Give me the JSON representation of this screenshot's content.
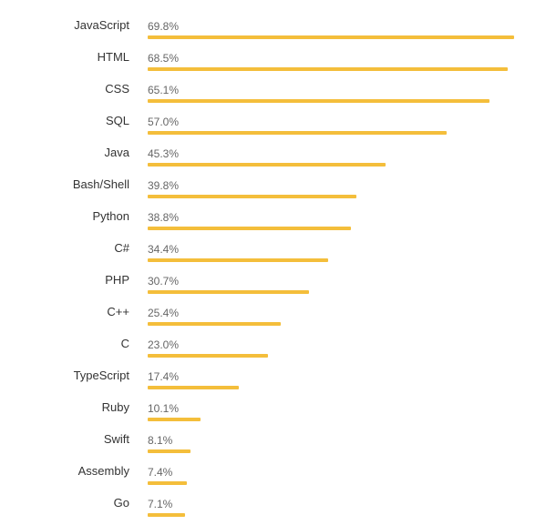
{
  "chart_data": {
    "type": "bar",
    "orientation": "horizontal",
    "categories": [
      "JavaScript",
      "HTML",
      "CSS",
      "SQL",
      "Java",
      "Bash/Shell",
      "Python",
      "C#",
      "PHP",
      "C++",
      "C",
      "TypeScript",
      "Ruby",
      "Swift",
      "Assembly",
      "Go"
    ],
    "values": [
      69.8,
      68.5,
      65.1,
      57.0,
      45.3,
      39.8,
      38.8,
      34.4,
      30.7,
      25.4,
      23.0,
      17.4,
      10.1,
      8.1,
      7.4,
      7.1
    ],
    "value_labels": [
      "69.8%",
      "68.5%",
      "65.1%",
      "57.0%",
      "45.3%",
      "39.8%",
      "38.8%",
      "34.4%",
      "30.7%",
      "25.4%",
      "23.0%",
      "17.4%",
      "10.1%",
      "8.1%",
      "7.4%",
      "7.1%"
    ],
    "unit": "%",
    "xlim": [
      0,
      69.8
    ],
    "grid": false,
    "legend": "none",
    "bar_color": "#f4be3b"
  }
}
